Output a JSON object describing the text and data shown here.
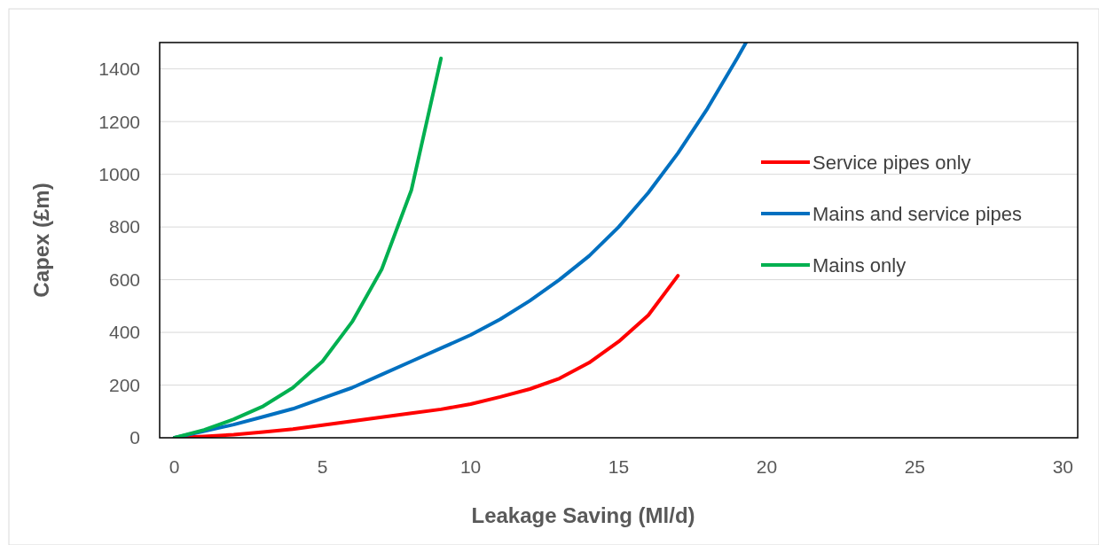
{
  "chart_data": {
    "type": "line",
    "xlabel": "Leakage Saving (Ml/d)",
    "ylabel": "Capex (£m)",
    "xlim": [
      -0.5,
      30.5
    ],
    "xticks": [
      0,
      5,
      10,
      15,
      20,
      25,
      30
    ],
    "ylim": [
      0,
      1500
    ],
    "yticks": [
      0,
      200,
      400,
      600,
      800,
      1000,
      1200,
      1400
    ],
    "grid": "y",
    "legend": "right",
    "line_style": "solid",
    "marker": "none",
    "series": [
      {
        "name": "Service pipes only",
        "color": "#ff0000",
        "x": [
          0,
          1,
          2,
          3,
          4,
          5,
          6,
          7,
          8,
          9,
          10,
          11,
          12,
          13,
          14,
          15,
          16,
          17
        ],
        "values": [
          0,
          5,
          12,
          22,
          33,
          48,
          63,
          78,
          93,
          108,
          128,
          155,
          185,
          225,
          285,
          365,
          465,
          615
        ]
      },
      {
        "name": "Mains and service pipes",
        "color": "#0070c0",
        "x": [
          0,
          1,
          2,
          3,
          4,
          5,
          6,
          7,
          8,
          9,
          10,
          11,
          12,
          13,
          14,
          15,
          16,
          17,
          18,
          19,
          19.3
        ],
        "values": [
          0,
          25,
          50,
          80,
          110,
          150,
          190,
          240,
          290,
          340,
          390,
          450,
          520,
          600,
          690,
          800,
          930,
          1080,
          1250,
          1440,
          1500
        ]
      },
      {
        "name": "Mains only",
        "color": "#00b050",
        "x": [
          0,
          1,
          2,
          3,
          4,
          5,
          6,
          7,
          8,
          9
        ],
        "values": [
          0,
          30,
          70,
          120,
          190,
          290,
          440,
          640,
          940,
          1440
        ]
      }
    ]
  }
}
